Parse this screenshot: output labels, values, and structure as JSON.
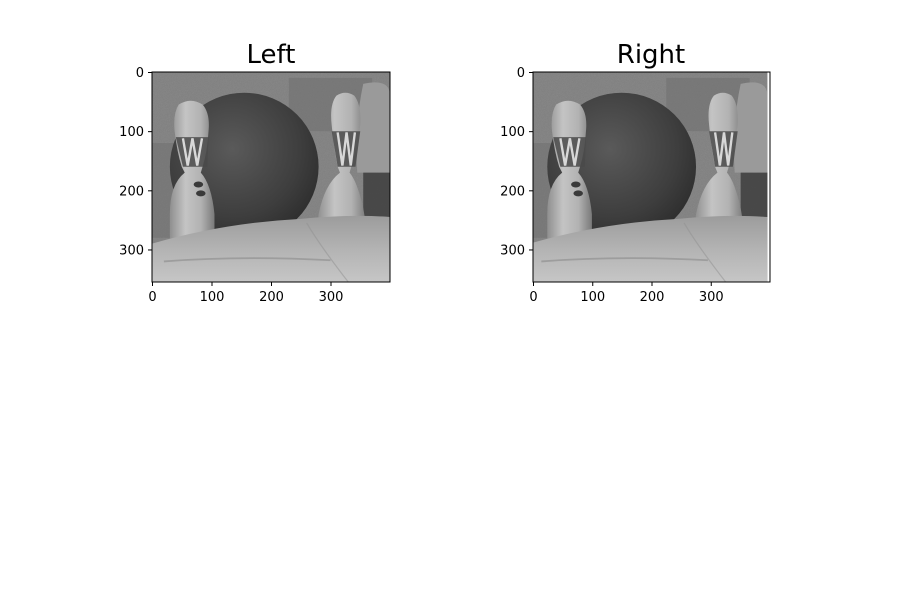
{
  "chart_data": [
    {
      "type": "image",
      "title": "Left",
      "image_description": "grayscale stereo photograph: two bowling pins, a dark ball, cloth foreground",
      "x_ticks": [
        0,
        100,
        200,
        300
      ],
      "y_ticks": [
        0,
        100,
        200,
        300
      ],
      "x_range": [
        0,
        400
      ],
      "y_range": [
        0,
        355
      ],
      "y_inverted": true,
      "xlabel": "",
      "ylabel": ""
    },
    {
      "type": "image",
      "title": "Right",
      "image_description": "grayscale stereo photograph: two bowling pins, a dark ball, cloth foreground",
      "x_ticks": [
        0,
        100,
        200,
        300
      ],
      "y_ticks": [
        0,
        100,
        200,
        300
      ],
      "x_range": [
        0,
        400
      ],
      "y_range": [
        0,
        355
      ],
      "y_inverted": true,
      "xlabel": "",
      "ylabel": ""
    }
  ]
}
